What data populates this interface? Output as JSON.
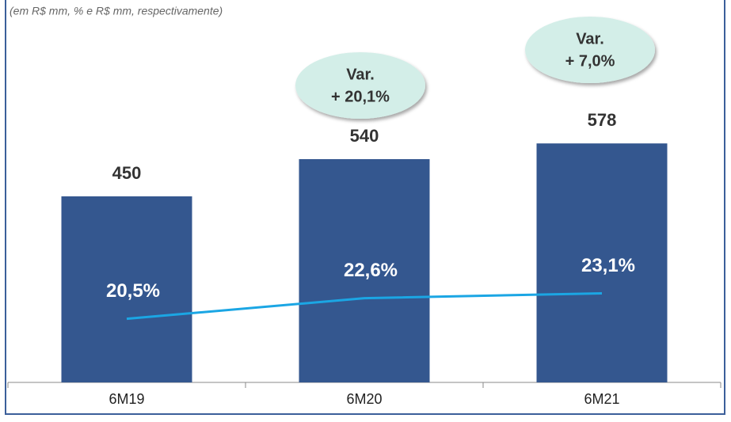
{
  "chart_data": {
    "type": "bar_line",
    "subtitle": "(em R$ mm, % e R$ mm, respectivamente)",
    "categories": [
      "6M19",
      "6M20",
      "6M21"
    ],
    "series": [
      {
        "type": "bar",
        "color": "#34578f",
        "values": [
          450,
          540,
          578
        ]
      },
      {
        "type": "line",
        "axis": "y2",
        "color": "#1ba6e4",
        "values": [
          20.5,
          22.6,
          23.1
        ],
        "value_labels": [
          "20,5%",
          "22,6%",
          "23,1%"
        ]
      }
    ],
    "ylim": [
      0,
      900
    ],
    "y2lim": [
      14,
      52
    ],
    "annotations": [
      {
        "lines": [
          "Var.",
          "+ 20,1%"
        ]
      },
      {
        "lines": [
          "Var.",
          "+ 7,0%"
        ]
      }
    ]
  }
}
